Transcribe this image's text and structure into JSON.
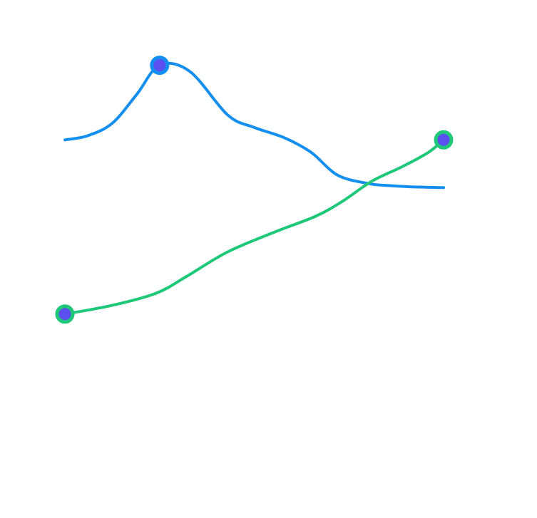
{
  "chart_data": {
    "type": "line",
    "title": "",
    "xlabel": "",
    "ylabel": "",
    "xlim": [
      0,
      10
    ],
    "ylim": [
      0,
      10
    ],
    "grid": false,
    "axes_visible": false,
    "legend": "none",
    "marker_fill": "#5b4ff0",
    "series": [
      {
        "color": "#148ff0",
        "x": [
          0,
          0.6,
          1.25,
          1.9,
          2.5,
          3.3,
          4.3,
          5.0,
          5.8,
          6.5,
          7.2,
          8.0,
          8.5,
          9.1,
          10.0
        ],
        "y": [
          7.4,
          7.5,
          7.8,
          8.5,
          9.2,
          9.05,
          8.0,
          7.7,
          7.45,
          7.1,
          6.55,
          6.35,
          6.3,
          6.27,
          6.25
        ],
        "marker_indices": [
          4
        ]
      },
      {
        "color": "#1ec878",
        "x": [
          0,
          1.2,
          2.4,
          3.2,
          4.3,
          5.6,
          6.6,
          7.3,
          8.1,
          8.9,
          9.6,
          10.0
        ],
        "y": [
          3.2,
          3.4,
          3.7,
          4.1,
          4.7,
          5.2,
          5.55,
          5.9,
          6.4,
          6.75,
          7.1,
          7.4
        ],
        "marker_indices": [
          0,
          11
        ]
      }
    ]
  }
}
